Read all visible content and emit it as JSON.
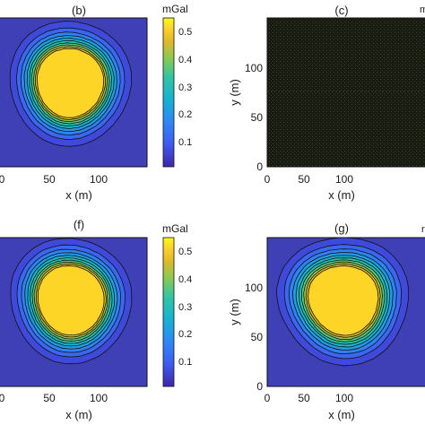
{
  "colors": {
    "background": "#3f3fb6",
    "frame": "#111111",
    "panel_c_fill": "#171913",
    "panel_c_dots": "#4a4a22"
  },
  "chart_data": [
    {
      "panel": "(b)",
      "type": "heatmap",
      "style": "filled-contour",
      "xlabel": "x (m)",
      "ylabel": "",
      "xticks": [
        "0",
        "50",
        "100"
      ],
      "yticks": [],
      "xlim": [
        0,
        150
      ],
      "ylim": [
        0,
        150
      ],
      "levels": [
        0.05,
        0.1,
        0.15,
        0.2,
        0.25,
        0.3,
        0.35,
        0.4,
        0.45,
        0.5
      ],
      "peaks": [
        {
          "x": 62,
          "y": 95,
          "amp": 0.55
        },
        {
          "x": 85,
          "y": 90,
          "amp": 0.5
        },
        {
          "x": 70,
          "y": 70,
          "amp": 0.55
        }
      ],
      "colorbar": {
        "label": "mGal",
        "ticks": [
          "0.5",
          "0.4",
          "0.3",
          "0.2",
          "0.1"
        ],
        "range": [
          0.02,
          0.56
        ]
      }
    },
    {
      "panel": "(c)",
      "type": "heatmap",
      "style": "dense-noise",
      "xlabel": "x (m)",
      "ylabel": "y (m)",
      "xticks": [
        "0",
        "50",
        "100"
      ],
      "yticks": [
        "100",
        "50",
        "0"
      ],
      "xlim": [
        0,
        150
      ],
      "ylim": [
        0,
        150
      ],
      "colorbar_label_fragment": "m"
    },
    {
      "panel": "(f)",
      "type": "heatmap",
      "style": "filled-contour",
      "xlabel": "x (m)",
      "ylabel": "",
      "xticks": [
        "0",
        "50",
        "100"
      ],
      "yticks": [],
      "xlim": [
        0,
        150
      ],
      "ylim": [
        0,
        150
      ],
      "levels": [
        0.05,
        0.1,
        0.15,
        0.2,
        0.25,
        0.3,
        0.35,
        0.4,
        0.45,
        0.5
      ],
      "peaks": [
        {
          "x": 62,
          "y": 98,
          "amp": 0.55
        },
        {
          "x": 85,
          "y": 92,
          "amp": 0.5
        },
        {
          "x": 72,
          "y": 72,
          "amp": 0.55
        }
      ],
      "colorbar": {
        "label": "mGal",
        "ticks": [
          "0.5",
          "0.4",
          "0.3",
          "0.2",
          "0.1"
        ],
        "range": [
          0.02,
          0.56
        ]
      }
    },
    {
      "panel": "(g)",
      "type": "heatmap",
      "style": "filled-contour",
      "xlabel": "x (m)",
      "ylabel": "y (m)",
      "xticks": [
        "0",
        "50",
        "100"
      ],
      "yticks": [
        "100",
        "50",
        "0"
      ],
      "xlim": [
        0,
        150
      ],
      "ylim": [
        0,
        150
      ],
      "levels": [
        0.05,
        0.1,
        0.15,
        0.2,
        0.25,
        0.3,
        0.35,
        0.4,
        0.45,
        0.5
      ],
      "peaks": [
        {
          "x": 58,
          "y": 96,
          "amp": 0.52
        },
        {
          "x": 85,
          "y": 98,
          "amp": 0.5
        },
        {
          "x": 75,
          "y": 70,
          "amp": 0.56
        }
      ],
      "colorbar_label_fragment": "r"
    }
  ]
}
